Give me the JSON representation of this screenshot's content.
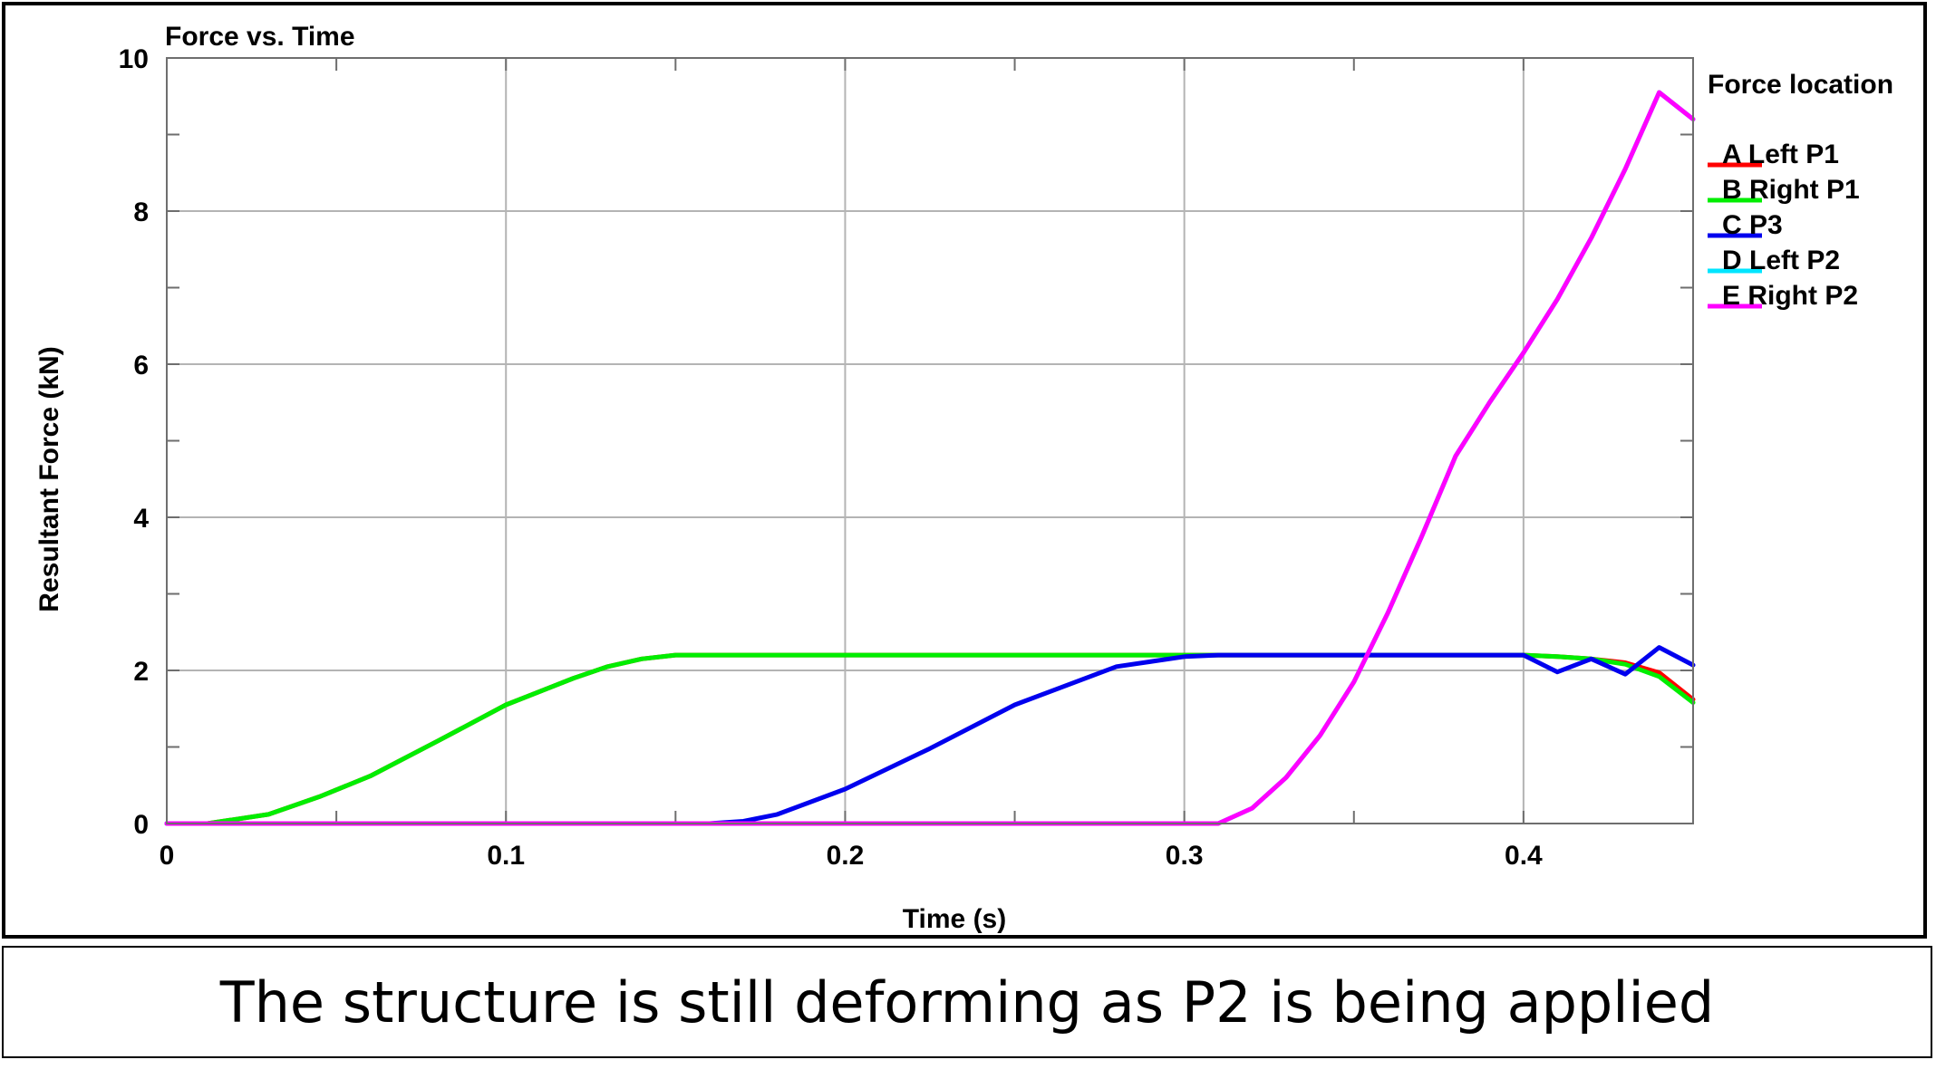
{
  "caption": "The structure is still deforming as P2 is being applied",
  "chart_data": {
    "type": "line",
    "title": "Force vs. Time",
    "xlabel": "Time (s)",
    "ylabel": "Resultant Force (kN)",
    "xlim": [
      0,
      0.45
    ],
    "ylim": [
      0,
      10
    ],
    "xticks": [
      0,
      0.1,
      0.2,
      0.3,
      0.4
    ],
    "xtick_labels": [
      "0",
      "0.1",
      "0.2",
      "0.3",
      "0.4"
    ],
    "yticks": [
      0,
      2,
      4,
      6,
      8,
      10
    ],
    "ytick_labels": [
      "0",
      "2",
      "4",
      "6",
      "8",
      "10"
    ],
    "grid": true,
    "legend_title": "Force location",
    "legend_position": "right",
    "series": [
      {
        "name": "A Left P1",
        "color": "#ff0000",
        "x": [
          0,
          0.012,
          0.03,
          0.045,
          0.06,
          0.08,
          0.1,
          0.12,
          0.13,
          0.14,
          0.15,
          0.2,
          0.3,
          0.4,
          0.41,
          0.42,
          0.43,
          0.44,
          0.45
        ],
        "y": [
          0,
          0,
          0.12,
          0.35,
          0.62,
          1.08,
          1.55,
          1.9,
          2.05,
          2.15,
          2.2,
          2.2,
          2.2,
          2.2,
          2.18,
          2.15,
          2.1,
          1.97,
          1.62
        ]
      },
      {
        "name": "B Right P1",
        "color": "#00ee00",
        "x": [
          0,
          0.012,
          0.03,
          0.045,
          0.06,
          0.08,
          0.1,
          0.12,
          0.13,
          0.14,
          0.15,
          0.2,
          0.3,
          0.4,
          0.41,
          0.42,
          0.43,
          0.44,
          0.45
        ],
        "y": [
          0,
          0,
          0.12,
          0.35,
          0.62,
          1.08,
          1.55,
          1.9,
          2.05,
          2.15,
          2.2,
          2.2,
          2.2,
          2.2,
          2.18,
          2.15,
          2.08,
          1.92,
          1.58
        ]
      },
      {
        "name": "C P3",
        "color": "#0000ee",
        "x": [
          0,
          0.16,
          0.17,
          0.18,
          0.2,
          0.225,
          0.25,
          0.28,
          0.3,
          0.31,
          0.32,
          0.39,
          0.4,
          0.41,
          0.42,
          0.43,
          0.44,
          0.45
        ],
        "y": [
          0,
          0,
          0.03,
          0.12,
          0.45,
          0.98,
          1.55,
          2.05,
          2.18,
          2.2,
          2.2,
          2.2,
          2.2,
          1.98,
          2.15,
          1.95,
          2.3,
          2.07
        ]
      },
      {
        "name": "D Left P2",
        "color": "#00e5ff",
        "x": [
          0,
          0.31,
          0.32,
          0.33,
          0.34,
          0.35,
          0.36,
          0.37,
          0.38,
          0.39,
          0.4,
          0.41,
          0.42,
          0.43,
          0.44,
          0.45
        ],
        "y": [
          0,
          0,
          0.2,
          0.6,
          1.15,
          1.85,
          2.75,
          3.75,
          4.8,
          5.5,
          6.15,
          6.85,
          7.65,
          8.55,
          9.55,
          9.2
        ]
      },
      {
        "name": "E Right P2",
        "color": "#ff00ff",
        "x": [
          0,
          0.31,
          0.32,
          0.33,
          0.34,
          0.35,
          0.36,
          0.37,
          0.38,
          0.39,
          0.4,
          0.41,
          0.42,
          0.43,
          0.44,
          0.45
        ],
        "y": [
          0,
          0,
          0.2,
          0.6,
          1.15,
          1.85,
          2.75,
          3.75,
          4.8,
          5.5,
          6.15,
          6.85,
          7.65,
          8.55,
          9.55,
          9.2
        ]
      }
    ]
  }
}
